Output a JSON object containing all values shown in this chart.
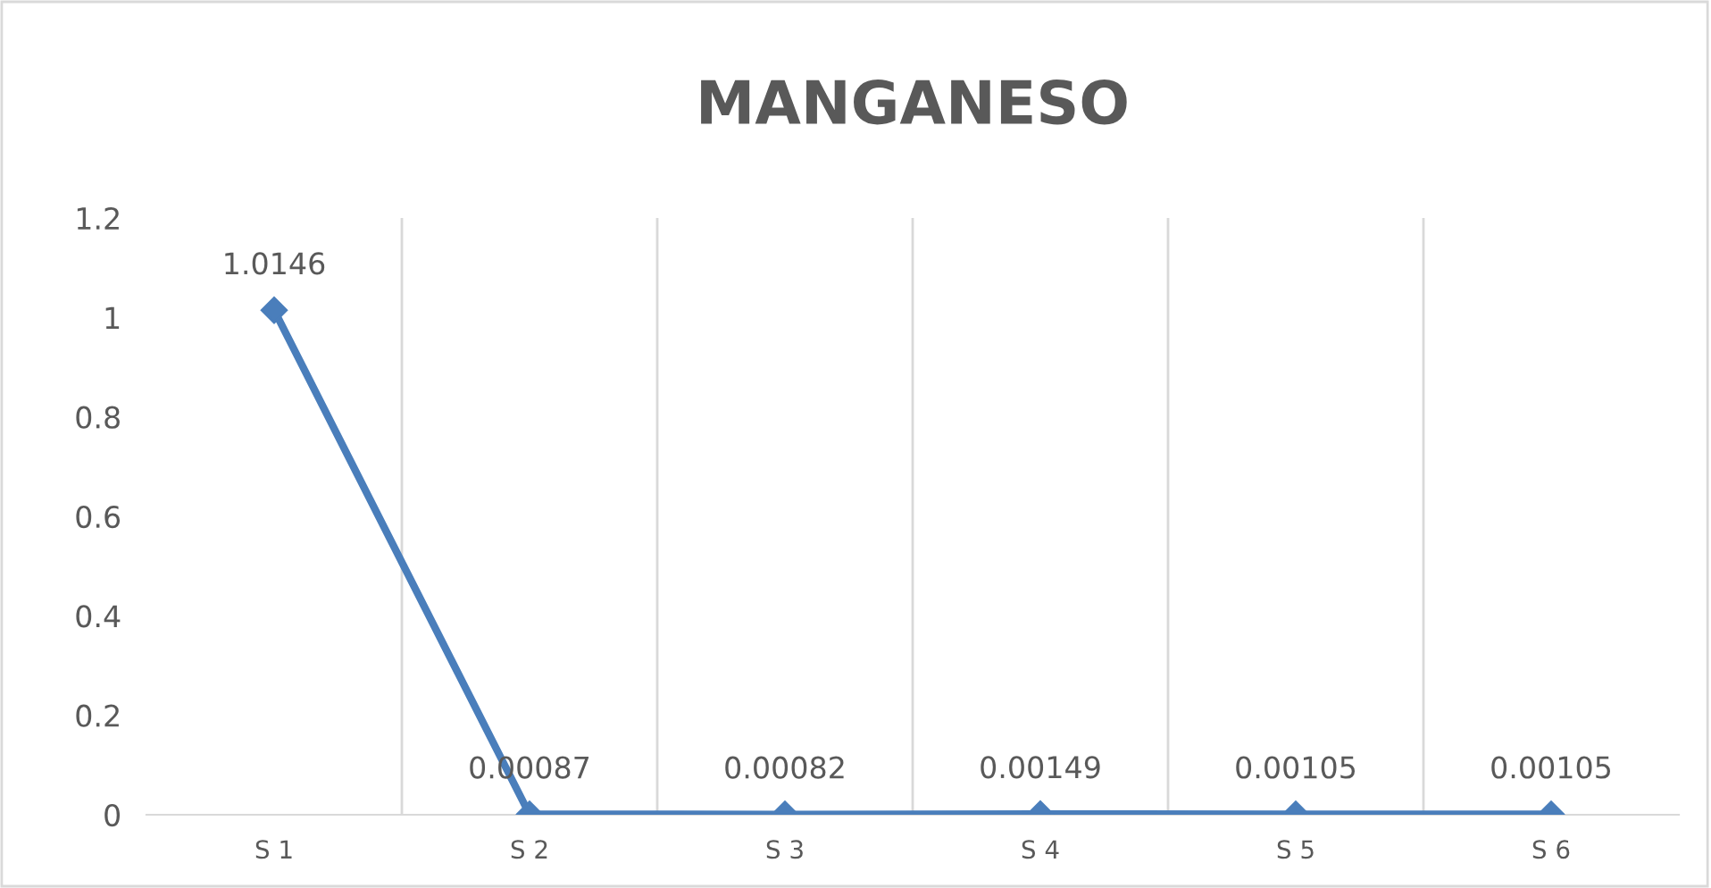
{
  "chart_data": {
    "type": "line",
    "title": "MANGANESO",
    "categories": [
      "S 1",
      "S 2",
      "S 3",
      "S 4",
      "S 5",
      "S 6"
    ],
    "series": [
      {
        "color": "#4a7ebb",
        "values": [
          1.0146,
          0.00087,
          0.00082,
          0.00149,
          0.00105,
          0.00105
        ]
      }
    ],
    "ylim": [
      0,
      1.2
    ],
    "yticks": [
      0,
      0.2,
      0.4,
      0.6,
      0.8,
      1,
      1.2
    ],
    "grid": "x",
    "marker": "diamond",
    "line_style": "solid",
    "data_labels": true,
    "legend": false
  }
}
